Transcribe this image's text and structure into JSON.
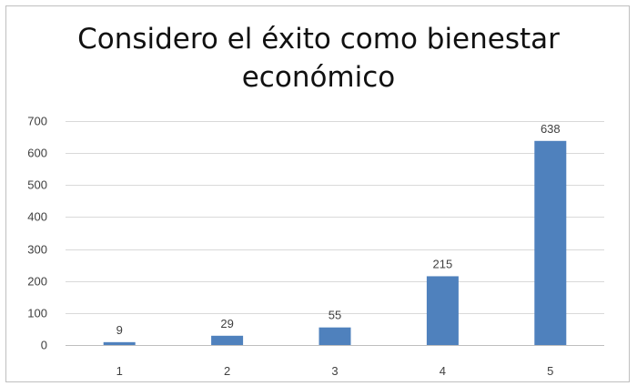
{
  "chart_data": {
    "type": "bar",
    "title": "Considero el éxito como bienestar económico",
    "title_lines": [
      "Considero el éxito como bienestar",
      "económico"
    ],
    "categories": [
      "1",
      "2",
      "3",
      "4",
      "5"
    ],
    "values": [
      9,
      29,
      55,
      215,
      638
    ],
    "data_labels": [
      "9",
      "29",
      "55",
      "215",
      "638"
    ],
    "xlabel": "",
    "ylabel": "",
    "ylim": [
      0,
      700
    ],
    "yticks": [
      0,
      100,
      200,
      300,
      400,
      500,
      600,
      700
    ],
    "grid": true,
    "legend": "none",
    "bar_color": "#4f81bd",
    "grid_color": "#d9d9d9"
  }
}
